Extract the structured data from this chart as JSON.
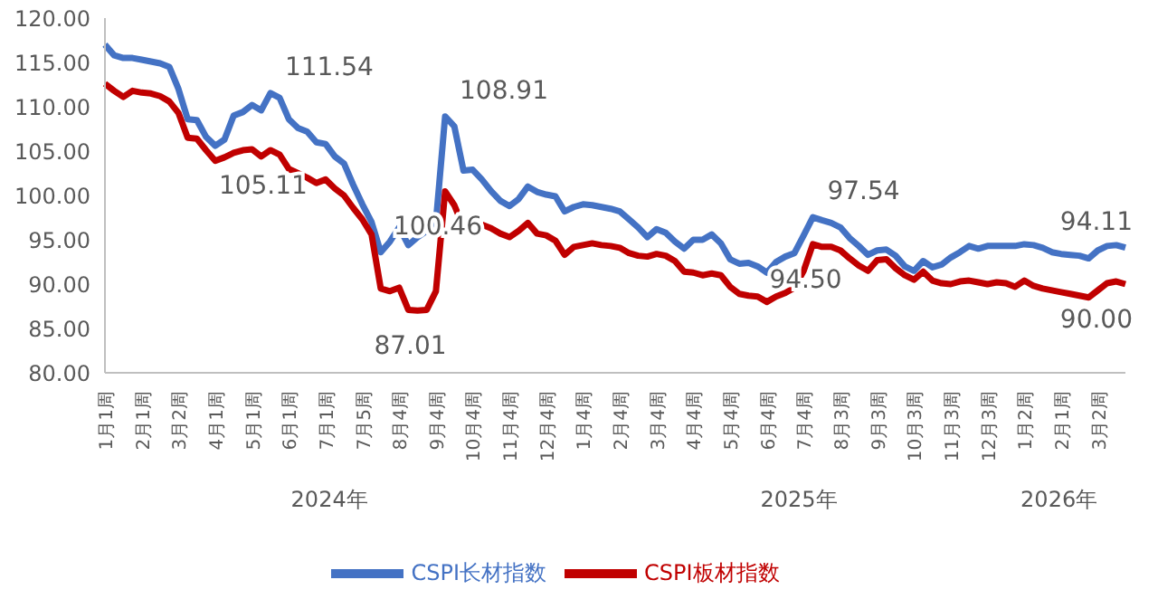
{
  "chart_data": {
    "type": "line",
    "categories": [
      "1月1周",
      null,
      null,
      null,
      "2月1周",
      null,
      null,
      null,
      "3月2周",
      null,
      null,
      null,
      "4月1周",
      null,
      null,
      null,
      "5月1周",
      null,
      null,
      null,
      "6月1周",
      null,
      null,
      null,
      "7月1周",
      null,
      null,
      null,
      "7月5周",
      null,
      null,
      null,
      "8月4周",
      null,
      null,
      null,
      "9月4周",
      null,
      null,
      null,
      "10月4周",
      null,
      null,
      null,
      "11月4周",
      null,
      null,
      null,
      "12月4周",
      null,
      null,
      null,
      "1月4周",
      null,
      null,
      null,
      "2月4周",
      null,
      null,
      null,
      "3月4周",
      null,
      null,
      null,
      "4月4周",
      null,
      null,
      null,
      "5月4周",
      null,
      null,
      null,
      "6月4周",
      null,
      null,
      null,
      "7月4周",
      null,
      null,
      null,
      "8月3周",
      null,
      null,
      null,
      "9月3周",
      null,
      null,
      null,
      "10月3周",
      null,
      null,
      null,
      "11月3周",
      null,
      null,
      null,
      "12月3周",
      null,
      null,
      null,
      "1月2周",
      null,
      null,
      null,
      "2月1周",
      null,
      null,
      null,
      "3月2周",
      null,
      null,
      null
    ],
    "series": [
      {
        "name": "CSPI长材指数",
        "color": "#4472c4",
        "values": [
          117.0,
          115.8,
          115.5,
          115.5,
          115.3,
          115.1,
          114.9,
          114.5,
          112.0,
          108.6,
          108.5,
          106.6,
          105.6,
          106.3,
          109.0,
          109.4,
          110.2,
          109.6,
          111.54,
          111.0,
          108.6,
          107.6,
          107.2,
          106.0,
          105.8,
          104.4,
          103.6,
          101.2,
          99.0,
          97.0,
          93.6,
          94.8,
          96.4,
          94.4,
          95.3,
          96.0,
          97.0,
          108.91,
          107.8,
          102.8,
          102.9,
          101.8,
          100.5,
          99.4,
          98.8,
          99.6,
          101.0,
          100.4,
          100.1,
          99.9,
          98.2,
          98.7,
          99.0,
          98.9,
          98.7,
          98.5,
          98.2,
          97.3,
          96.4,
          95.3,
          96.2,
          95.8,
          94.8,
          94.0,
          95.0,
          95.0,
          95.6,
          94.6,
          92.8,
          92.3,
          92.4,
          92.0,
          91.3,
          92.5,
          93.1,
          93.5,
          95.5,
          97.54,
          97.2,
          96.9,
          96.4,
          95.2,
          94.3,
          93.3,
          93.8,
          93.9,
          93.2,
          92.0,
          91.5,
          92.6,
          91.9,
          92.2,
          93.0,
          93.6,
          94.3,
          94.0,
          94.3,
          94.3,
          94.3,
          94.3,
          94.5,
          94.4,
          94.1,
          93.6,
          93.4,
          93.3,
          93.2,
          92.9,
          93.8,
          94.3,
          94.4,
          94.11
        ],
        "value_labels": [
          null,
          null,
          null,
          null,
          null,
          null,
          null,
          null,
          null,
          null,
          null,
          null,
          null,
          null,
          null,
          null,
          null,
          null,
          "111.54",
          null,
          null,
          null,
          null,
          null,
          null,
          null,
          null,
          null,
          null,
          null,
          null,
          null,
          null,
          null,
          null,
          null,
          null,
          "108.91",
          null,
          null,
          null,
          null,
          null,
          null,
          null,
          null,
          null,
          null,
          null,
          null,
          null,
          null,
          null,
          null,
          null,
          null,
          null,
          null,
          null,
          null,
          null,
          null,
          null,
          null,
          null,
          null,
          null,
          null,
          null,
          null,
          null,
          null,
          null,
          null,
          null,
          null,
          null,
          "97.54",
          null,
          null,
          null,
          null,
          null,
          null,
          null,
          null,
          null,
          null,
          null,
          null,
          null,
          null,
          null,
          null,
          null,
          null,
          null,
          null,
          null,
          null,
          null,
          null,
          null,
          null,
          null,
          null,
          null,
          null,
          null,
          null,
          null,
          "94.11"
        ]
      },
      {
        "name": "CSPI板材指数",
        "color": "#c00000",
        "values": [
          112.6,
          111.8,
          111.1,
          111.8,
          111.6,
          111.5,
          111.2,
          110.6,
          109.3,
          106.5,
          106.4,
          105.1,
          103.9,
          104.3,
          104.8,
          105.1,
          105.2,
          104.4,
          105.11,
          104.6,
          103.0,
          102.5,
          102.0,
          101.4,
          101.8,
          100.8,
          100.0,
          98.6,
          97.3,
          95.6,
          89.5,
          89.2,
          89.6,
          87.1,
          87.01,
          87.1,
          89.2,
          100.46,
          98.9,
          96.4,
          97.1,
          96.7,
          96.3,
          95.7,
          95.3,
          96.0,
          96.9,
          95.7,
          95.5,
          94.9,
          93.3,
          94.2,
          94.4,
          94.6,
          94.4,
          94.3,
          94.1,
          93.5,
          93.2,
          93.1,
          93.4,
          93.2,
          92.6,
          91.4,
          91.3,
          91.0,
          91.2,
          91.0,
          89.7,
          88.9,
          88.7,
          88.6,
          88.0,
          88.6,
          89.0,
          89.6,
          91.5,
          94.5,
          94.2,
          94.2,
          93.8,
          92.9,
          92.1,
          91.5,
          92.7,
          92.8,
          91.8,
          91.0,
          90.5,
          91.4,
          90.4,
          90.1,
          90.0,
          90.3,
          90.4,
          90.2,
          90.0,
          90.2,
          90.1,
          89.7,
          90.4,
          89.8,
          89.5,
          89.3,
          89.1,
          88.9,
          88.7,
          88.5,
          89.3,
          90.1,
          90.3,
          90.0
        ],
        "value_labels": [
          null,
          null,
          null,
          null,
          null,
          null,
          null,
          null,
          null,
          null,
          null,
          null,
          null,
          null,
          null,
          null,
          null,
          null,
          "105.11",
          null,
          null,
          null,
          null,
          null,
          null,
          null,
          null,
          null,
          null,
          null,
          null,
          null,
          null,
          null,
          "87.01",
          null,
          null,
          "100.46",
          null,
          null,
          null,
          null,
          null,
          null,
          null,
          null,
          null,
          null,
          null,
          null,
          null,
          null,
          null,
          null,
          null,
          null,
          null,
          null,
          null,
          null,
          null,
          null,
          null,
          null,
          null,
          null,
          null,
          null,
          null,
          null,
          null,
          null,
          null,
          null,
          null,
          null,
          null,
          "94.50",
          null,
          null,
          null,
          null,
          null,
          null,
          null,
          null,
          null,
          null,
          null,
          null,
          null,
          null,
          null,
          null,
          null,
          null,
          null,
          null,
          null,
          null,
          null,
          null,
          null,
          null,
          null,
          null,
          null,
          null,
          null,
          null,
          null,
          "90.00"
        ]
      }
    ],
    "ylim": [
      80,
      120
    ],
    "yticks": [
      {
        "value": 80,
        "label": "80.00"
      },
      {
        "value": 85,
        "label": "85.00"
      },
      {
        "value": 90,
        "label": "90.00"
      },
      {
        "value": 95,
        "label": "95.00"
      },
      {
        "value": 100,
        "label": "100.00"
      },
      {
        "value": 105,
        "label": "105.00"
      },
      {
        "value": 110,
        "label": "110.00"
      },
      {
        "value": 115,
        "label": "115.00"
      },
      {
        "value": 120,
        "label": "120.00"
      }
    ],
    "legend": "bottom",
    "annotations": [
      "2024年",
      "2025年",
      "2026年"
    ]
  }
}
